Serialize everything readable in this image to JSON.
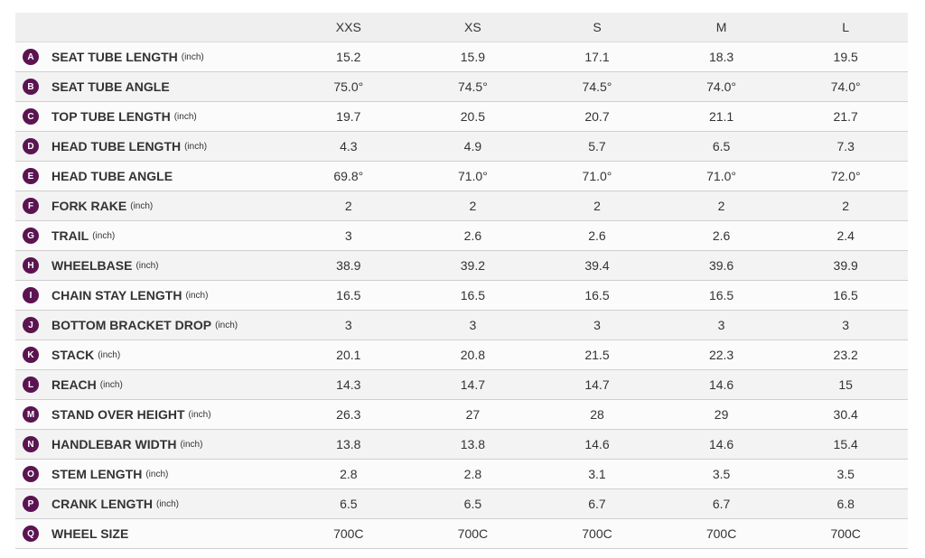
{
  "table": {
    "columns": [
      "XXS",
      "XS",
      "S",
      "M",
      "L"
    ],
    "rows": [
      {
        "letter": "A",
        "name": "SEAT TUBE LENGTH",
        "unit": "(inch)",
        "values": [
          "15.2",
          "15.9",
          "17.1",
          "18.3",
          "19.5"
        ]
      },
      {
        "letter": "B",
        "name": "SEAT TUBE ANGLE",
        "values": [
          "75.0°",
          "74.5°",
          "74.5°",
          "74.0°",
          "74.0°"
        ]
      },
      {
        "letter": "C",
        "name": "TOP TUBE LENGTH",
        "unit": "(inch)",
        "values": [
          "19.7",
          "20.5",
          "20.7",
          "21.1",
          "21.7"
        ]
      },
      {
        "letter": "D",
        "name": "HEAD TUBE LENGTH",
        "unit": "(inch)",
        "values": [
          "4.3",
          "4.9",
          "5.7",
          "6.5",
          "7.3"
        ]
      },
      {
        "letter": "E",
        "name": "HEAD TUBE ANGLE",
        "values": [
          "69.8°",
          "71.0°",
          "71.0°",
          "71.0°",
          "72.0°"
        ]
      },
      {
        "letter": "F",
        "name": "FORK RAKE",
        "unit": "(inch)",
        "values": [
          "2",
          "2",
          "2",
          "2",
          "2"
        ]
      },
      {
        "letter": "G",
        "name": "TRAIL",
        "unit": "(inch)",
        "values": [
          "3",
          "2.6",
          "2.6",
          "2.6",
          "2.4"
        ]
      },
      {
        "letter": "H",
        "name": "WHEELBASE",
        "unit": "(inch)",
        "values": [
          "38.9",
          "39.2",
          "39.4",
          "39.6",
          "39.9"
        ]
      },
      {
        "letter": "I",
        "name": "CHAIN STAY LENGTH",
        "unit": "(inch)",
        "values": [
          "16.5",
          "16.5",
          "16.5",
          "16.5",
          "16.5"
        ]
      },
      {
        "letter": "J",
        "name": "BOTTOM BRACKET DROP",
        "unit": "(inch)",
        "values": [
          "3",
          "3",
          "3",
          "3",
          "3"
        ]
      },
      {
        "letter": "K",
        "name": "STACK",
        "unit": "(inch)",
        "values": [
          "20.1",
          "20.8",
          "21.5",
          "22.3",
          "23.2"
        ]
      },
      {
        "letter": "L",
        "name": "REACH",
        "unit": "(inch)",
        "values": [
          "14.3",
          "14.7",
          "14.7",
          "14.6",
          "15"
        ]
      },
      {
        "letter": "M",
        "name": "STAND OVER HEIGHT",
        "unit": "(inch)",
        "values": [
          "26.3",
          "27",
          "28",
          "29",
          "30.4"
        ]
      },
      {
        "letter": "N",
        "name": "HANDLEBAR WIDTH",
        "unit": "(inch)",
        "values": [
          "13.8",
          "13.8",
          "14.6",
          "14.6",
          "15.4"
        ]
      },
      {
        "letter": "O",
        "name": "STEM LENGTH",
        "unit": "(inch)",
        "values": [
          "2.8",
          "2.8",
          "3.1",
          "3.5",
          "3.5"
        ]
      },
      {
        "letter": "P",
        "name": "CRANK LENGTH",
        "unit": "(inch)",
        "values": [
          "6.5",
          "6.5",
          "6.7",
          "6.7",
          "6.8"
        ]
      },
      {
        "letter": "Q",
        "name": "WHEEL SIZE",
        "values": [
          "700C",
          "700C",
          "700C",
          "700C",
          "700C"
        ]
      }
    ]
  }
}
